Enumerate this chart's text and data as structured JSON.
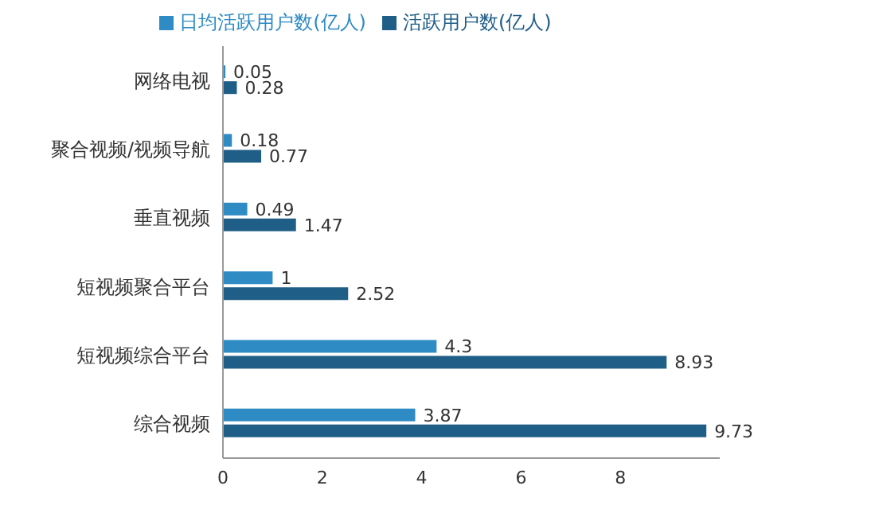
{
  "chart_data": {
    "type": "bar",
    "orientation": "horizontal",
    "categories": [
      "网络电视",
      "聚合视频/视频导航",
      "垂直视频",
      "短视频聚合平台",
      "短视频综合平台",
      "综合视频"
    ],
    "series": [
      {
        "name": "日均活跃用户数(亿人)",
        "color": "#2e8bc4",
        "values": [
          0.05,
          0.18,
          0.49,
          1,
          4.3,
          3.87
        ]
      },
      {
        "name": "活跃用户数(亿人)",
        "color": "#1f5e87",
        "values": [
          0.28,
          0.77,
          1.47,
          2.52,
          8.93,
          9.73
        ]
      }
    ],
    "xlim": [
      0,
      10
    ],
    "xticks": [
      0,
      2,
      4,
      6,
      8
    ],
    "data_labels": true,
    "legend": "top",
    "grid": false
  }
}
